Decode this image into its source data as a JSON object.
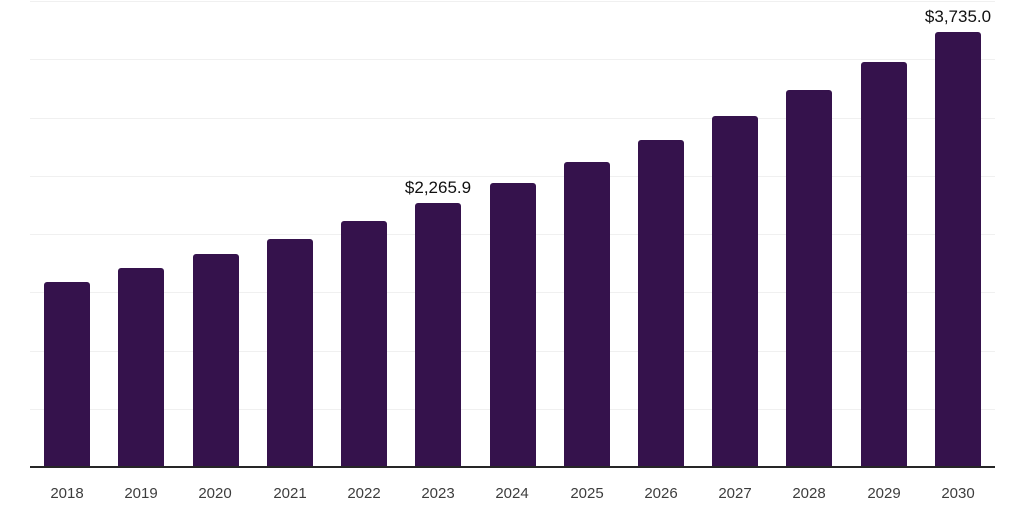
{
  "chart": {
    "background_color": "#ffffff",
    "bar_color": "#35124c",
    "axis_color": "#262626",
    "gridline_color": "#f0f0f0",
    "tick_label_color": "#3d3d3d",
    "data_label_color": "#111111"
  },
  "chart_data": {
    "type": "bar",
    "title": "",
    "xlabel": "",
    "ylabel": "",
    "categories": [
      "2018",
      "2019",
      "2020",
      "2021",
      "2022",
      "2023",
      "2024",
      "2025",
      "2026",
      "2027",
      "2028",
      "2029",
      "2030"
    ],
    "values": [
      1590,
      1705,
      1830,
      1960,
      2110,
      2265.9,
      2435,
      2615,
      2805,
      3010,
      3235,
      3480,
      3735
    ],
    "data_labels": {
      "2023": "$2,265.9",
      "2030": "$3,735.0"
    },
    "ylim": [
      0,
      4000
    ],
    "grid_step": 500,
    "grid": "horizontal",
    "legend_position": "none",
    "y_axis_labels_visible": false
  }
}
